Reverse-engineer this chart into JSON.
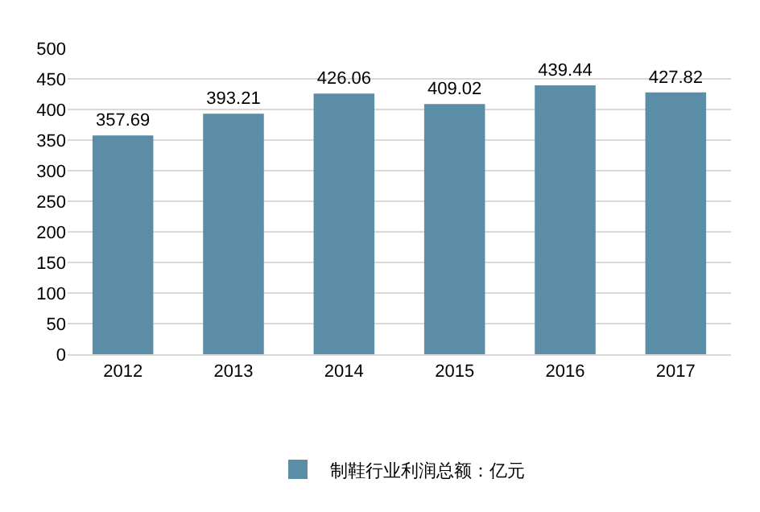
{
  "chart_data": {
    "type": "bar",
    "categories": [
      "2012",
      "2013",
      "2014",
      "2015",
      "2016",
      "2017"
    ],
    "series": [
      {
        "name": "制鞋行业利润总额：亿元",
        "color": "#5b8ea6",
        "values": [
          357.69,
          393.21,
          426.06,
          409.02,
          439.44,
          427.82
        ]
      }
    ],
    "ylim": [
      0,
      500
    ],
    "yticks": [
      0,
      50,
      100,
      150,
      200,
      250,
      300,
      350,
      400,
      450,
      500
    ],
    "grid": "y",
    "legend": "bottom",
    "data_labels": true
  }
}
